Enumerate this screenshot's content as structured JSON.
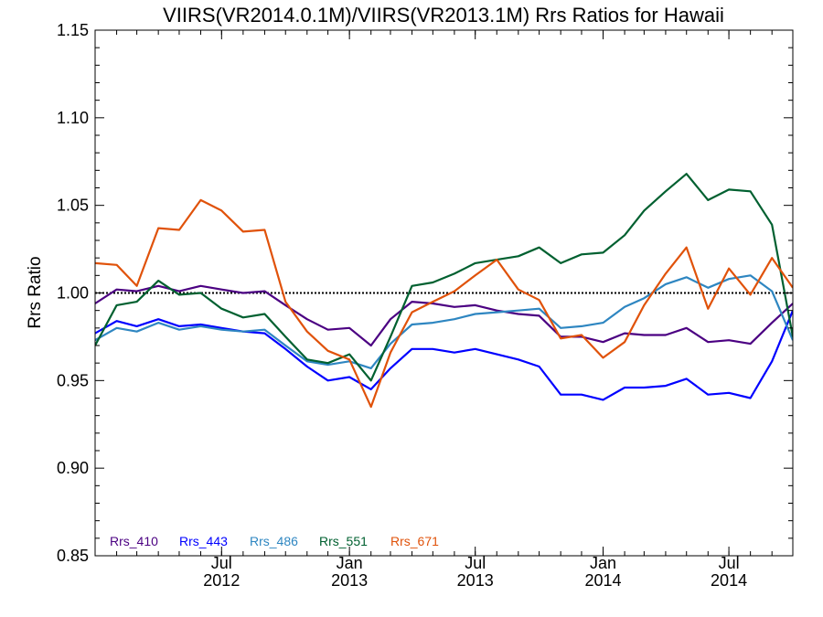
{
  "chart_data": {
    "type": "line",
    "title": "VIIRS(VR2014.0.1M)/VIIRS(VR2013.1M)  Rrs Ratios for Hawaii",
    "xlabel": "",
    "ylabel": "Rrs Ratio",
    "ylim": [
      0.85,
      1.15
    ],
    "yticks": [
      0.85,
      0.9,
      0.95,
      1.0,
      1.05,
      1.1,
      1.15
    ],
    "ytick_labels": [
      "0.85",
      "0.90",
      "0.95",
      "1.00",
      "1.05",
      "1.10",
      "1.15"
    ],
    "xlim": [
      "2012-01-01",
      "2014-10-01"
    ],
    "xticks": [
      {
        "date": "2012-07-01",
        "month": "Jul",
        "year": "2012"
      },
      {
        "date": "2013-01-01",
        "month": "Jan",
        "year": "2013"
      },
      {
        "date": "2013-07-01",
        "month": "Jul",
        "year": "2013"
      },
      {
        "date": "2014-01-01",
        "month": "Jan",
        "year": "2014"
      },
      {
        "date": "2014-07-01",
        "month": "Jul",
        "year": "2014"
      }
    ],
    "reference_line": 1.0,
    "legend_position": "bottom-left",
    "x": [
      "2012-01-01",
      "2012-02-01",
      "2012-03-01",
      "2012-04-01",
      "2012-05-01",
      "2012-06-01",
      "2012-07-01",
      "2012-08-01",
      "2012-09-01",
      "2012-10-01",
      "2012-11-01",
      "2012-12-01",
      "2013-01-01",
      "2013-02-01",
      "2013-03-01",
      "2013-04-01",
      "2013-05-01",
      "2013-06-01",
      "2013-07-01",
      "2013-08-01",
      "2013-09-01",
      "2013-10-01",
      "2013-11-01",
      "2013-12-01",
      "2014-01-01",
      "2014-02-01",
      "2014-03-01",
      "2014-04-01",
      "2014-05-01",
      "2014-06-01",
      "2014-07-01",
      "2014-08-01",
      "2014-09-01",
      "2014-10-01"
    ],
    "series": [
      {
        "name": "Rrs_410",
        "color": "#4b0082",
        "values": [
          0.994,
          1.002,
          1.001,
          1.004,
          1.001,
          1.004,
          1.002,
          1.0,
          1.001,
          0.993,
          0.985,
          0.979,
          0.98,
          0.97,
          0.985,
          0.995,
          0.994,
          0.992,
          0.993,
          0.99,
          0.988,
          0.987,
          0.975,
          0.975,
          0.972,
          0.977,
          0.976,
          0.976,
          0.98,
          0.972,
          0.973,
          0.971,
          0.983,
          0.994
        ]
      },
      {
        "name": "Rrs_443",
        "color": "#0000ff",
        "values": [
          0.977,
          0.984,
          0.981,
          0.985,
          0.981,
          0.982,
          0.98,
          0.978,
          0.977,
          0.968,
          0.958,
          0.95,
          0.952,
          0.945,
          0.957,
          0.968,
          0.968,
          0.966,
          0.968,
          0.965,
          0.962,
          0.958,
          0.942,
          0.942,
          0.939,
          0.946,
          0.946,
          0.947,
          0.951,
          0.942,
          0.943,
          0.94,
          0.961,
          0.99
        ]
      },
      {
        "name": "Rrs_486",
        "color": "#2e86c1",
        "values": [
          0.973,
          0.98,
          0.978,
          0.983,
          0.979,
          0.981,
          0.979,
          0.978,
          0.979,
          0.97,
          0.961,
          0.959,
          0.961,
          0.957,
          0.971,
          0.982,
          0.983,
          0.985,
          0.988,
          0.989,
          0.99,
          0.991,
          0.98,
          0.981,
          0.983,
          0.992,
          0.997,
          1.005,
          1.009,
          1.003,
          1.008,
          1.01,
          1.001,
          0.973
        ]
      },
      {
        "name": "Rrs_551",
        "color": "#006030",
        "values": [
          0.97,
          0.993,
          0.995,
          1.007,
          0.999,
          1.0,
          0.991,
          0.986,
          0.988,
          0.975,
          0.962,
          0.96,
          0.965,
          0.95,
          0.975,
          1.004,
          1.006,
          1.011,
          1.017,
          1.019,
          1.021,
          1.026,
          1.017,
          1.022,
          1.023,
          1.033,
          1.047,
          1.058,
          1.068,
          1.053,
          1.059,
          1.058,
          1.039,
          0.975
        ]
      },
      {
        "name": "Rrs_671",
        "color": "#e0520a",
        "values": [
          1.017,
          1.016,
          1.004,
          1.037,
          1.036,
          1.053,
          1.047,
          1.035,
          1.036,
          0.995,
          0.978,
          0.967,
          0.962,
          0.935,
          0.966,
          0.989,
          0.995,
          1.001,
          1.01,
          1.019,
          1.002,
          0.996,
          0.974,
          0.976,
          0.963,
          0.972,
          0.993,
          1.011,
          1.026,
          0.991,
          1.014,
          0.999,
          1.02,
          1.003
        ]
      }
    ]
  }
}
